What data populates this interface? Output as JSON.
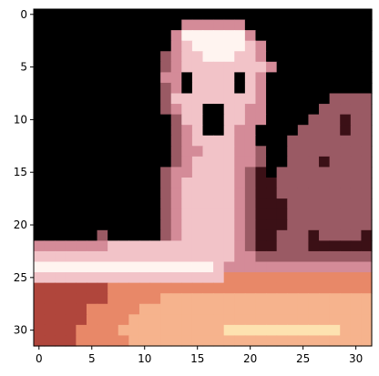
{
  "chart_data": {
    "type": "heatmap",
    "title": "",
    "xlabel": "",
    "ylabel": "",
    "xlim": [
      -0.5,
      31.5
    ],
    "ylim": [
      31.5,
      -0.5
    ],
    "grid": false,
    "legend": "none",
    "grid_size": [
      32,
      32
    ],
    "x_ticks": [
      0,
      5,
      10,
      15,
      20,
      25,
      30
    ],
    "y_ticks": [
      0,
      5,
      10,
      15,
      20,
      25,
      30
    ],
    "x_tick_labels": [
      "0",
      "5",
      "10",
      "15",
      "20",
      "25",
      "30"
    ],
    "y_tick_labels": [
      "0",
      "5",
      "10",
      "15",
      "20",
      "25",
      "30"
    ],
    "pixel_rows": [
      "KKKKKKKKKKKKKKKKKKKKKKKKKKKKKKKK",
      "KKKKKKKKKKKKKKPPPPPPKKKKKKKKKKKK",
      "KKKKKKKKKKKKKPWWWWWWPKKKKKKKKKKK",
      "KKKKKKKKKKKKKPLWWWWWLPKKKKKKKKKK",
      "KKKKKKKKKKKKMPLLWWWLLPKKKKKKKKKK",
      "KKKKKKKKKKKKMPLLLLLLLLPKKKKKKKKK",
      "KKKKKKKKKKKKPPKLLLLKLPKKKKKKKKKK",
      "KKKKKKKKKKKKMPKLLLLKLPKKKKKKKKKK",
      "KKKKKKKKKKKKMLLLLLLLLPKKKKKKMMMM",
      "KKKKKKKKKKKKMPLLKKLLPPKKKKKMMMMM",
      "KKKKKKKKKKKKKMLLKKLLPPKKKKMMMDMM",
      "KKKKKKKKKKKKKMPLKKLPPKKKKMMMMDMM",
      "KKKKKKKKKKKKKMPLLLLPPKKKMMMMMMMM",
      "KKKKKKKKKKKKKMPPLLLPPMKKMMMMMMMM",
      "KKKKKKKKKKKKKMPLLLLPPMKKMMMDMMMM",
      "KKKKKKKKKKKKMPPLLLLPMDKMMMMMMMMM",
      "KKKKKKKKKKKKMPLLLLLPMDDMMMMMMMMM",
      "KKKKKKKKKKKKMPLLLLLPMDDMMMMMMMMM",
      "KKKKKKKKKKKKMPLLLLLPMDDDMMMMMMMM",
      "KKKKKKKKKKKKMPLLLLLPMDDDMMMMMMMM",
      "KKKKKKKKKKKKMPLLLLLPMDDDMMMMMMMM",
      "KKKKKKMKKKKKMPLLLLLPMDDMMMDMMMMD",
      "PPPPPPPLLLLLLLLLLLLPMDDMMMDDDDDD",
      "LLLLLLLLLLLLLLLLLLLPPMMMMMMMMMMM",
      "WWWWWWWWWWWWWWWWWLPPPPPPPPPPPPPP",
      "LLLLLLLLLLLLLLLLLLSSSSSSSSSSSSSS",
      "RRRRRRRSSSSSSSSSSSSSSSSSSSSSSSSS",
      "RRRRRRRSSSSSAAAAAAAAAAAAAAAAAAAA",
      "RRRRRSSSSSAAAAAAAAAAAAAAAAAAAAAA",
      "RRRRRSSSSAAAAAAAAAAAAAAAAAAAAAAA",
      "RRRRSSSSAAAAAAAAAAYYYYYYYYYYYAAA",
      "RRRRSSSSSAAAAAAAAAAAAAAAAAAAAAAA"
    ],
    "palette": {
      "K": "#000000",
      "D": "#3b1016",
      "M": "#9a5a64",
      "P": "#d48b98",
      "L": "#f2c3c8",
      "W": "#fff4f0",
      "R": "#b0463c",
      "S": "#e88868",
      "A": "#f6b38d",
      "Y": "#fde2b0"
    },
    "axis_color": "#000000"
  }
}
